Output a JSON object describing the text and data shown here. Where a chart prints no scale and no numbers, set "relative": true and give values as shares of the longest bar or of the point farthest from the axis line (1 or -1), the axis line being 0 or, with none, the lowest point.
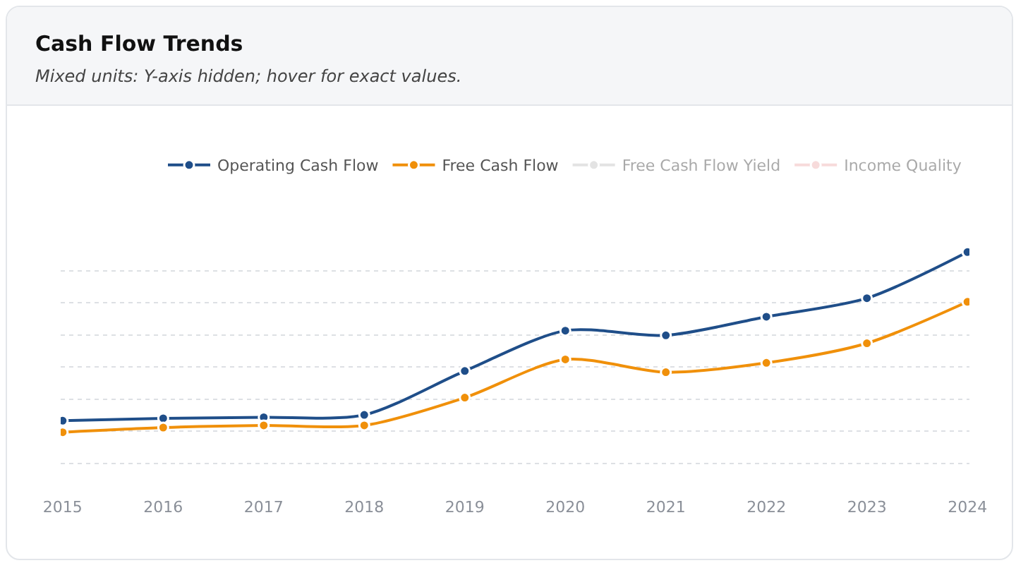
{
  "chart_data": {
    "type": "line",
    "title": "Cash Flow Trends",
    "subtitle": "Mixed units: Y-axis hidden; hover for exact values.",
    "categories": [
      "2015",
      "2016",
      "2017",
      "2018",
      "2019",
      "2020",
      "2021",
      "2022",
      "2023",
      "2024"
    ],
    "relative": true,
    "grid": "y",
    "legend": "top right",
    "marker": "circle",
    "line_style": "solid",
    "series": [
      {
        "name": "Operating Cash Flow",
        "color": "#1f4e89",
        "values": [
          0.064,
          0.077,
          0.083,
          0.096,
          0.34,
          0.564,
          0.538,
          0.641,
          0.744,
          1
        ]
      },
      {
        "name": "Free Cash Flow",
        "color": "#f0900a",
        "values": [
          0,
          0.026,
          0.038,
          0.038,
          0.192,
          0.404,
          0.333,
          0.385,
          0.494,
          0.724
        ]
      },
      {
        "name": "Free Cash Flow Yield",
        "color": "#c8c8c8",
        "values": [
          null,
          null,
          null,
          null,
          null,
          null,
          null,
          null,
          null,
          null
        ]
      },
      {
        "name": "Income Quality",
        "color": "#f0b8b8",
        "values": [
          null,
          null,
          null,
          null,
          null,
          null,
          null,
          null,
          null,
          null
        ]
      }
    ]
  }
}
